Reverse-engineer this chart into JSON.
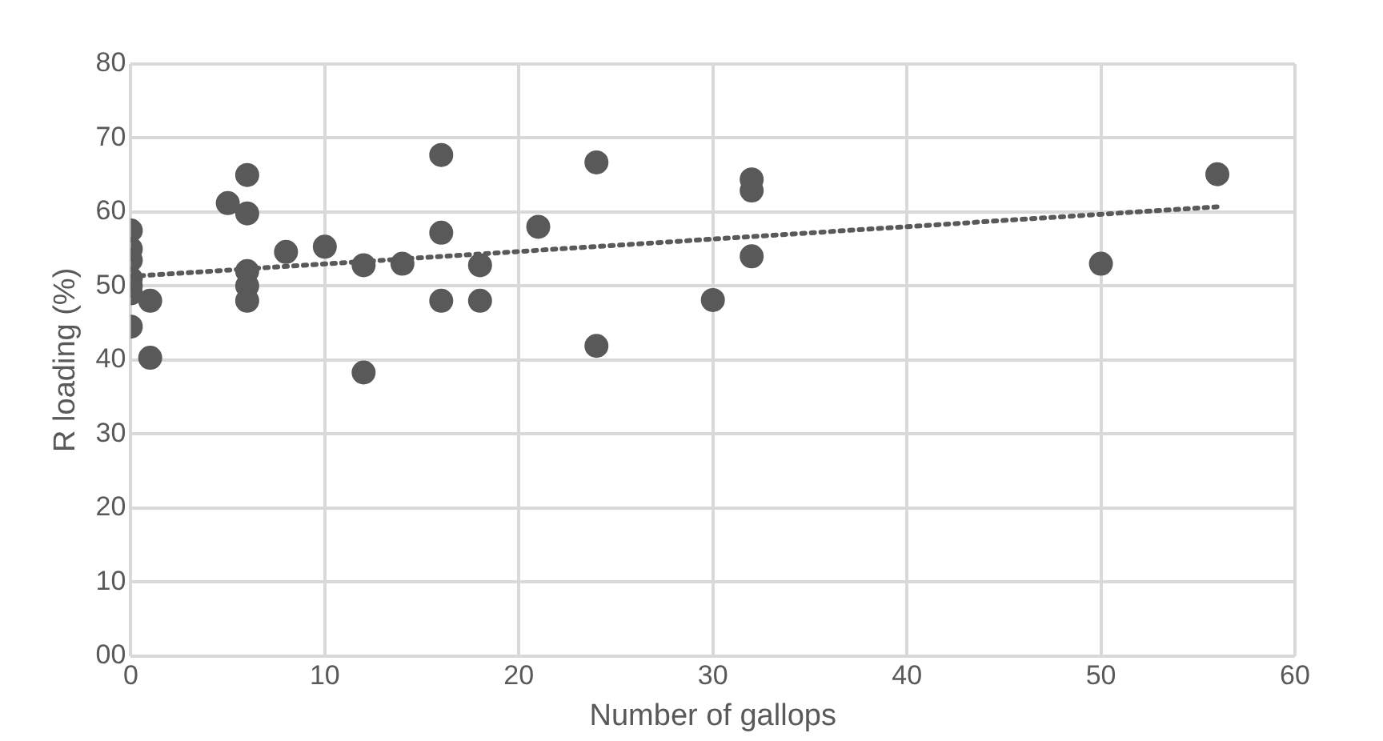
{
  "chart_data": {
    "type": "scatter",
    "xlabel": "Number of gallops",
    "ylabel": "R loading (%)",
    "xlim": [
      0,
      60
    ],
    "xticks": [
      0,
      10,
      20,
      30,
      40,
      50,
      60
    ],
    "ylim": [
      0,
      80
    ],
    "yticks": [
      {
        "value": 0,
        "label": "00"
      },
      10,
      20,
      30,
      40,
      50,
      60,
      70,
      80
    ],
    "grid": true,
    "marker": "circle",
    "series": [
      {
        "color": "#595959",
        "x": [
          0,
          0,
          0,
          0,
          0,
          0,
          0,
          1,
          1,
          5,
          6,
          6,
          6,
          6,
          6,
          8,
          10,
          12,
          12,
          14,
          16,
          16,
          16,
          18,
          18,
          21,
          24,
          24,
          30,
          32,
          32,
          32,
          50,
          56
        ],
        "values": [
          57.5,
          55,
          53.5,
          51,
          50,
          49,
          44.5,
          48,
          40.3,
          61.2,
          65,
          59.8,
          52,
          50,
          48,
          54.6,
          55.3,
          52.8,
          38.3,
          53,
          67.7,
          57.2,
          48,
          52.8,
          48,
          58,
          66.7,
          41.9,
          48.1,
          64.4,
          62.9,
          54,
          53,
          65.1
        ]
      },
      {
        "type": "line",
        "color": "#595959",
        "line_style": "dotted",
        "marker": "none",
        "x": [
          0,
          56
        ],
        "values": [
          51.3,
          60.7
        ]
      }
    ]
  }
}
